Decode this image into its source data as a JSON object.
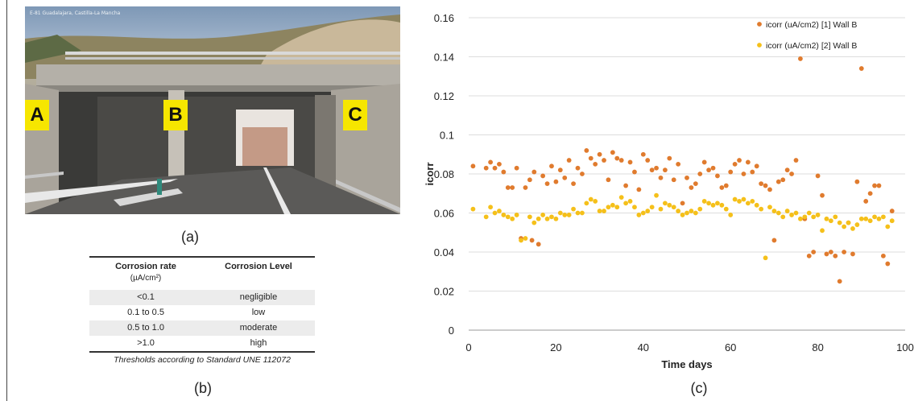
{
  "photo": {
    "watermark": "E-81 Guadalajara, Castilla-La Mancha",
    "labels": [
      "A",
      "B",
      "C"
    ],
    "caption": "(a)",
    "colors": {
      "label_bg": "#f6e600"
    }
  },
  "table": {
    "header": {
      "col1": "Corrosion rate",
      "col1_unit": "(µA/cm²)",
      "col2": "Corrosion Level"
    },
    "rows": [
      {
        "rate": "<0.1",
        "level": "negligible"
      },
      {
        "rate": "0.1 to 0.5",
        "level": "low"
      },
      {
        "rate": "0.5 to 1.0",
        "level": "moderate"
      },
      {
        "rate": ">1.0",
        "level": "high"
      }
    ],
    "note": "Thresholds according to Standard UNE 112072",
    "caption": "(b)"
  },
  "chart_caption": "(c)",
  "chart_data": {
    "type": "scatter",
    "title": "",
    "xlabel": "Time days",
    "ylabel": "icorr",
    "xlim": [
      0,
      100
    ],
    "ylim": [
      0,
      0.16
    ],
    "xticks": [
      0,
      20,
      40,
      60,
      80,
      100
    ],
    "xtick_labels": [
      "0",
      "20",
      "40",
      "60",
      "80",
      "100"
    ],
    "yticks": [
      0,
      0.02,
      0.04,
      0.06,
      0.08,
      0.1,
      0.12,
      0.14,
      0.16
    ],
    "ytick_labels": [
      "0",
      "0.02",
      "0.04",
      "0.06",
      "0.08",
      "0.1",
      "0.12",
      "0.14",
      "0.16"
    ],
    "grid": "horizontal",
    "legend": "top-right",
    "series": [
      {
        "name": "icorr (uA/cm2) [1] Wall B",
        "color": "#e07b2e",
        "points": [
          [
            1,
            0.084
          ],
          [
            4,
            0.083
          ],
          [
            5,
            0.086
          ],
          [
            6,
            0.083
          ],
          [
            7,
            0.085
          ],
          [
            8,
            0.081
          ],
          [
            9,
            0.073
          ],
          [
            10,
            0.073
          ],
          [
            11,
            0.083
          ],
          [
            12,
            0.047
          ],
          [
            13,
            0.073
          ],
          [
            14,
            0.077
          ],
          [
            14.5,
            0.046
          ],
          [
            15,
            0.081
          ],
          [
            16,
            0.044
          ],
          [
            17,
            0.079
          ],
          [
            18,
            0.075
          ],
          [
            19,
            0.084
          ],
          [
            20,
            0.076
          ],
          [
            21,
            0.082
          ],
          [
            22,
            0.078
          ],
          [
            23,
            0.087
          ],
          [
            24,
            0.075
          ],
          [
            25,
            0.083
          ],
          [
            26,
            0.08
          ],
          [
            27,
            0.092
          ],
          [
            28,
            0.088
          ],
          [
            29,
            0.085
          ],
          [
            30,
            0.09
          ],
          [
            31,
            0.087
          ],
          [
            32,
            0.077
          ],
          [
            33,
            0.091
          ],
          [
            34,
            0.088
          ],
          [
            35,
            0.087
          ],
          [
            36,
            0.074
          ],
          [
            37,
            0.086
          ],
          [
            38,
            0.081
          ],
          [
            39,
            0.072
          ],
          [
            40,
            0.09
          ],
          [
            41,
            0.087
          ],
          [
            42,
            0.082
          ],
          [
            43,
            0.083
          ],
          [
            44,
            0.078
          ],
          [
            45,
            0.082
          ],
          [
            46,
            0.088
          ],
          [
            47,
            0.077
          ],
          [
            48,
            0.085
          ],
          [
            49,
            0.065
          ],
          [
            50,
            0.078
          ],
          [
            51,
            0.073
          ],
          [
            52,
            0.075
          ],
          [
            53,
            0.08
          ],
          [
            54,
            0.086
          ],
          [
            55,
            0.082
          ],
          [
            56,
            0.083
          ],
          [
            57,
            0.079
          ],
          [
            58,
            0.073
          ],
          [
            59,
            0.074
          ],
          [
            60,
            0.081
          ],
          [
            61,
            0.085
          ],
          [
            62,
            0.087
          ],
          [
            63,
            0.08
          ],
          [
            64,
            0.086
          ],
          [
            65,
            0.081
          ],
          [
            66,
            0.084
          ],
          [
            67,
            0.075
          ],
          [
            68,
            0.074
          ],
          [
            69,
            0.072
          ],
          [
            70,
            0.046
          ],
          [
            71,
            0.076
          ],
          [
            72,
            0.077
          ],
          [
            73,
            0.082
          ],
          [
            74,
            0.08
          ],
          [
            75,
            0.087
          ],
          [
            76,
            0.139
          ],
          [
            77,
            0.057
          ],
          [
            78,
            0.038
          ],
          [
            79,
            0.04
          ],
          [
            80,
            0.079
          ],
          [
            81,
            0.069
          ],
          [
            82,
            0.039
          ],
          [
            83,
            0.04
          ],
          [
            84,
            0.038
          ],
          [
            85,
            0.025
          ],
          [
            86,
            0.04
          ],
          [
            87,
            0.055
          ],
          [
            88,
            0.039
          ],
          [
            89,
            0.076
          ],
          [
            90,
            0.134
          ],
          [
            91,
            0.066
          ],
          [
            92,
            0.07
          ],
          [
            93,
            0.074
          ],
          [
            94,
            0.074
          ],
          [
            95,
            0.038
          ],
          [
            96,
            0.034
          ],
          [
            97,
            0.061
          ]
        ]
      },
      {
        "name": "icorr (uA/cm2) [2] Wall B",
        "color": "#f5c01a",
        "points": [
          [
            1,
            0.062
          ],
          [
            4,
            0.058
          ],
          [
            5,
            0.063
          ],
          [
            6,
            0.06
          ],
          [
            7,
            0.061
          ],
          [
            8,
            0.059
          ],
          [
            9,
            0.058
          ],
          [
            10,
            0.057
          ],
          [
            11,
            0.059
          ],
          [
            12,
            0.046
          ],
          [
            13,
            0.047
          ],
          [
            14,
            0.058
          ],
          [
            15,
            0.055
          ],
          [
            16,
            0.057
          ],
          [
            17,
            0.059
          ],
          [
            18,
            0.057
          ],
          [
            19,
            0.058
          ],
          [
            20,
            0.057
          ],
          [
            21,
            0.06
          ],
          [
            22,
            0.059
          ],
          [
            23,
            0.059
          ],
          [
            24,
            0.062
          ],
          [
            25,
            0.06
          ],
          [
            26,
            0.06
          ],
          [
            27,
            0.065
          ],
          [
            28,
            0.067
          ],
          [
            29,
            0.066
          ],
          [
            30,
            0.061
          ],
          [
            31,
            0.061
          ],
          [
            32,
            0.063
          ],
          [
            33,
            0.064
          ],
          [
            34,
            0.063
          ],
          [
            35,
            0.068
          ],
          [
            36,
            0.065
          ],
          [
            37,
            0.066
          ],
          [
            38,
            0.063
          ],
          [
            39,
            0.059
          ],
          [
            40,
            0.06
          ],
          [
            41,
            0.061
          ],
          [
            42,
            0.063
          ],
          [
            43,
            0.069
          ],
          [
            44,
            0.062
          ],
          [
            45,
            0.065
          ],
          [
            46,
            0.064
          ],
          [
            47,
            0.063
          ],
          [
            48,
            0.061
          ],
          [
            49,
            0.059
          ],
          [
            50,
            0.06
          ],
          [
            51,
            0.061
          ],
          [
            52,
            0.06
          ],
          [
            53,
            0.062
          ],
          [
            54,
            0.066
          ],
          [
            55,
            0.065
          ],
          [
            56,
            0.064
          ],
          [
            57,
            0.065
          ],
          [
            58,
            0.064
          ],
          [
            59,
            0.062
          ],
          [
            60,
            0.059
          ],
          [
            61,
            0.067
          ],
          [
            62,
            0.066
          ],
          [
            63,
            0.067
          ],
          [
            64,
            0.065
          ],
          [
            65,
            0.066
          ],
          [
            66,
            0.064
          ],
          [
            67,
            0.062
          ],
          [
            68,
            0.037
          ],
          [
            69,
            0.063
          ],
          [
            70,
            0.061
          ],
          [
            71,
            0.06
          ],
          [
            72,
            0.058
          ],
          [
            73,
            0.061
          ],
          [
            74,
            0.059
          ],
          [
            75,
            0.06
          ],
          [
            76,
            0.057
          ],
          [
            77,
            0.058
          ],
          [
            78,
            0.06
          ],
          [
            79,
            0.058
          ],
          [
            80,
            0.059
          ],
          [
            81,
            0.051
          ],
          [
            82,
            0.057
          ],
          [
            83,
            0.056
          ],
          [
            84,
            0.058
          ],
          [
            85,
            0.055
          ],
          [
            86,
            0.053
          ],
          [
            87,
            0.055
          ],
          [
            88,
            0.052
          ],
          [
            89,
            0.054
          ],
          [
            90,
            0.057
          ],
          [
            91,
            0.057
          ],
          [
            92,
            0.056
          ],
          [
            93,
            0.058
          ],
          [
            94,
            0.057
          ],
          [
            95,
            0.058
          ],
          [
            96,
            0.053
          ],
          [
            97,
            0.056
          ]
        ]
      }
    ]
  }
}
